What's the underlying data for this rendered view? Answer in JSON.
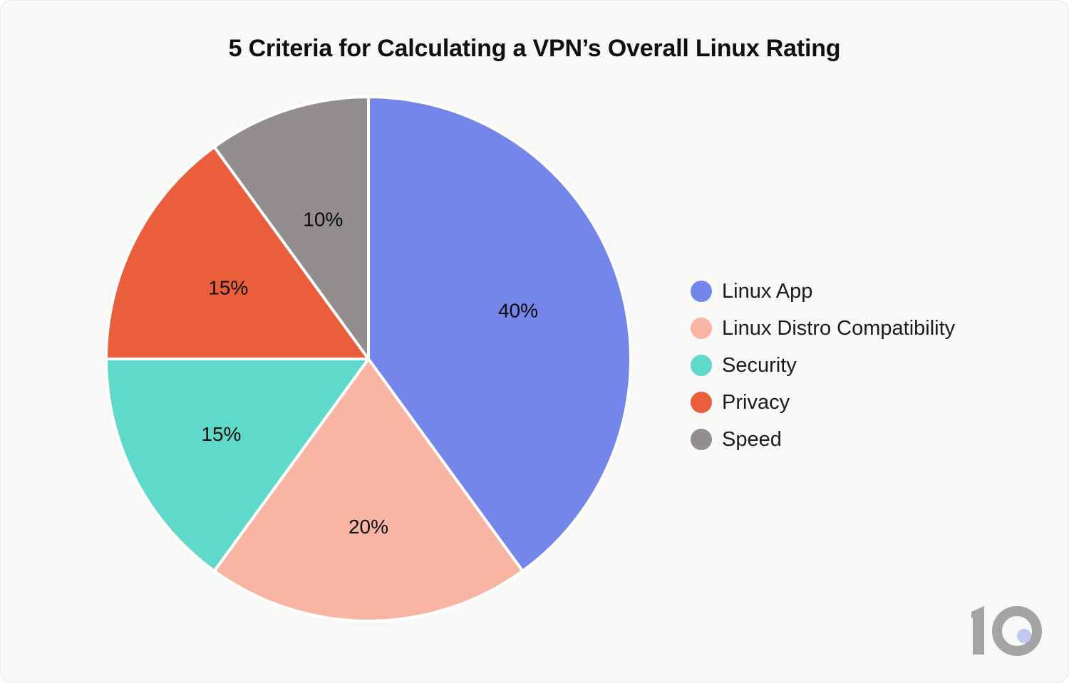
{
  "title": "5 Criteria for Calculating a VPN’s Overall Linux Rating",
  "chart_data": {
    "type": "pie",
    "title": "5 Criteria for Calculating a VPN’s Overall Linux Rating",
    "legend_position": "right",
    "start_angle_deg": 0,
    "direction": "clockwise",
    "slice_label_format": "percent",
    "stroke_color": "#FFFFFF",
    "stroke_width": 4,
    "slices": [
      {
        "label": "Linux App",
        "value": 40,
        "display": "40%",
        "color": "#7586EB",
        "label_radius_frac": 0.6
      },
      {
        "label": "Linux Distro Compatibility",
        "value": 20,
        "display": "20%",
        "color": "#F9B5A4",
        "label_radius_frac": 0.64
      },
      {
        "label": "Security",
        "value": 15,
        "display": "15%",
        "color": "#5FD9C9",
        "label_radius_frac": 0.63
      },
      {
        "label": "Privacy",
        "value": 15,
        "display": "15%",
        "color": "#EA5E3B",
        "label_radius_frac": 0.6
      },
      {
        "label": "Speed",
        "value": 10,
        "display": "10%",
        "color": "#918E8D",
        "label_radius_frac": 0.56
      }
    ]
  },
  "logo": {
    "text": "10",
    "color": "#A5A3A3",
    "dot_color": "#BFC7F2"
  },
  "canvas": {
    "background": "#F8F8F7",
    "text_color": "#101010"
  }
}
